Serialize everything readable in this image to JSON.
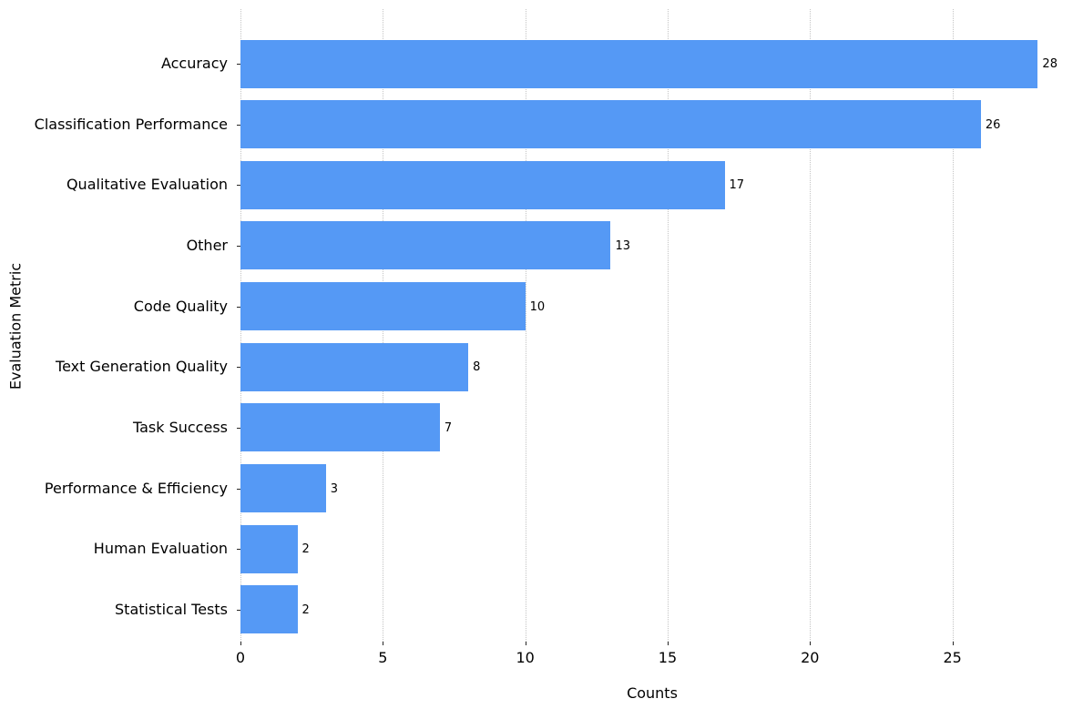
{
  "chart_data": {
    "type": "bar",
    "orientation": "horizontal",
    "title": "",
    "xlabel": "Counts",
    "ylabel": "Evaluation Metric",
    "categories": [
      "Accuracy",
      "Classification Performance",
      "Qualitative Evaluation",
      "Other",
      "Code Quality",
      "Text Generation Quality",
      "Task Success",
      "Performance & Efficiency",
      "Human Evaluation",
      "Statistical Tests"
    ],
    "values": [
      28,
      26,
      17,
      13,
      10,
      8,
      7,
      3,
      2,
      2
    ],
    "value_labels": [
      "28",
      "26",
      "17",
      "13",
      "10",
      "8",
      "7",
      "3",
      "2",
      "2"
    ],
    "xticks": [
      0,
      5,
      10,
      15,
      20,
      25
    ],
    "xlim": [
      0,
      28.85
    ],
    "grid": "vertical-dotted",
    "legend": "none",
    "bar_color": "#5599f5",
    "gridline_color": "#c4c4c4",
    "text_color": "#000000"
  }
}
